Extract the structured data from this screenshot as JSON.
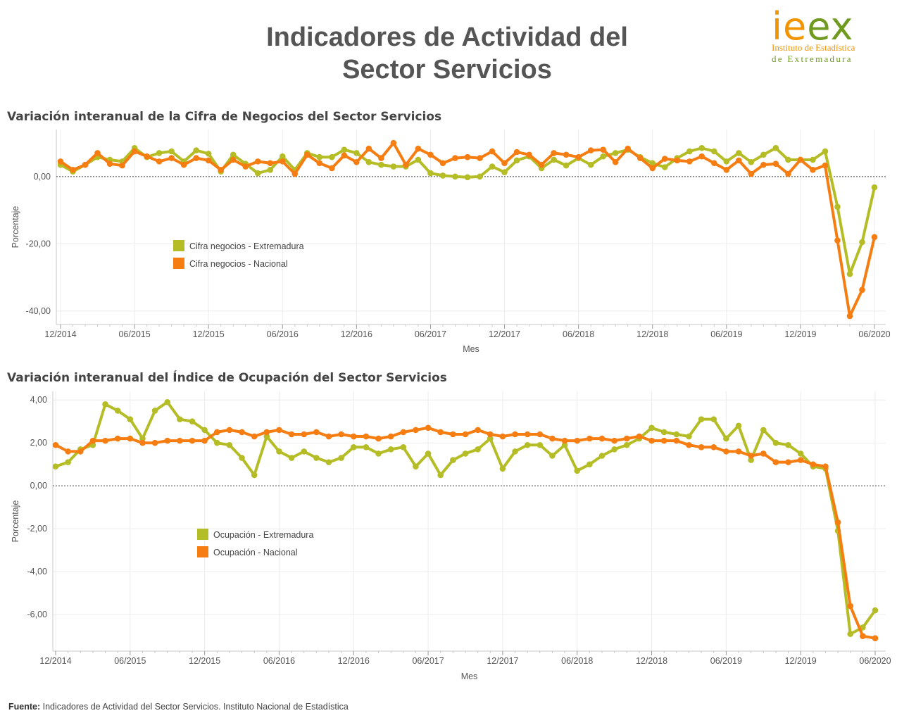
{
  "header": {
    "title_line1": "Indicadores de Actividad del",
    "title_line2": "Sector Servicios"
  },
  "logo": {
    "word_part1": "ie",
    "word_part2": "ex",
    "line1": "Instituto de Estadística",
    "line2": "de Extremadura"
  },
  "footer": {
    "source_label": "Fuente:",
    "source_text": " Indicadores de Actividad del Sector Servicios. Instituto Nacional de Estadística"
  },
  "colors": {
    "extremadura": "#b5bd26",
    "nacional": "#f57d12"
  },
  "chart_data": [
    {
      "type": "line",
      "title": "Variación interanual de la Cifra de Negocios del Sector Servicios",
      "xlabel": "Mes",
      "ylabel": "Porcentaje",
      "ylim": [
        -44,
        14
      ],
      "y_ticks": [
        0,
        -20,
        -40
      ],
      "y_tick_labels": [
        "0,00",
        "-20,00",
        "-40,00"
      ],
      "x_tick_labels": [
        "12/2014",
        "06/2015",
        "12/2015",
        "06/2016",
        "12/2016",
        "06/2017",
        "12/2017",
        "06/2018",
        "12/2018",
        "06/2019",
        "12/2019",
        "06/2020"
      ],
      "x_tick_index": [
        0,
        6,
        12,
        18,
        24,
        30,
        36,
        42,
        48,
        54,
        60,
        66
      ],
      "legend_position": "center-left",
      "series": [
        {
          "name": "Cifra negocios - Extremadura",
          "values": [
            3.5,
            1.5,
            3.5,
            5.8,
            5.0,
            4.5,
            8.5,
            5.8,
            7.0,
            7.5,
            4.5,
            7.8,
            6.8,
            1.5,
            6.5,
            3.8,
            1.0,
            2.0,
            6.0,
            2.0,
            7.0,
            5.8,
            5.8,
            8.0,
            7.0,
            4.3,
            3.5,
            3.0,
            3.0,
            5.0,
            1.0,
            0.3,
            0.0,
            -0.2,
            0.0,
            3.0,
            1.3,
            4.8,
            6.0,
            2.5,
            5.0,
            3.3,
            5.5,
            3.5,
            6.0,
            7.0,
            8.0,
            5.8,
            4.0,
            2.8,
            5.5,
            7.5,
            8.5,
            7.5,
            4.5,
            7.0,
            4.3,
            6.5,
            8.5,
            5.0,
            5.0,
            5.0,
            7.5,
            -9.0,
            -29.0,
            -19.5,
            -3.2
          ]
        },
        {
          "name": "Cifra negocios - Nacional",
          "values": [
            4.5,
            2.0,
            3.5,
            7.0,
            3.8,
            3.3,
            7.5,
            6.0,
            4.5,
            5.5,
            3.5,
            5.5,
            4.8,
            2.0,
            5.0,
            3.0,
            4.5,
            4.0,
            4.5,
            0.8,
            6.5,
            4.0,
            2.5,
            6.3,
            4.3,
            8.3,
            5.5,
            10.0,
            3.5,
            8.3,
            6.5,
            4.0,
            5.5,
            5.8,
            5.5,
            7.5,
            4.0,
            7.3,
            6.5,
            3.5,
            7.0,
            6.5,
            5.8,
            7.8,
            8.0,
            4.3,
            8.3,
            5.5,
            2.5,
            5.3,
            4.8,
            4.5,
            6.0,
            4.0,
            2.0,
            4.8,
            0.8,
            3.5,
            3.8,
            0.8,
            5.0,
            2.0,
            3.3,
            -19.0,
            -41.5,
            -33.7,
            -18.0
          ]
        }
      ]
    },
    {
      "type": "line",
      "title": "Variación interanual del Índice de Ocupación del Sector Servicios",
      "xlabel": "Mes",
      "ylabel": "Porcentaje",
      "ylim": [
        -7.7,
        4.4
      ],
      "y_ticks": [
        4,
        2,
        0,
        -2,
        -4,
        -6
      ],
      "y_tick_labels": [
        "4,00",
        "2,00",
        "0,00",
        "-2,00",
        "-4,00",
        "-6,00"
      ],
      "x_tick_labels": [
        "12/2014",
        "06/2015",
        "12/2015",
        "06/2016",
        "12/2016",
        "06/2017",
        "12/2017",
        "06/2018",
        "12/2018",
        "06/2019",
        "12/2019",
        "06/2020"
      ],
      "x_tick_index": [
        0,
        6,
        12,
        18,
        24,
        30,
        36,
        42,
        48,
        54,
        60,
        66
      ],
      "legend_position": "center-left",
      "series": [
        {
          "name": "Ocupación - Extremadura",
          "values": [
            0.9,
            1.1,
            1.7,
            1.9,
            3.8,
            3.5,
            3.1,
            2.2,
            3.5,
            3.9,
            3.1,
            3.0,
            2.6,
            2.0,
            1.9,
            1.3,
            0.5,
            2.3,
            1.6,
            1.3,
            1.6,
            1.3,
            1.1,
            1.3,
            1.8,
            1.8,
            1.5,
            1.7,
            1.8,
            0.9,
            1.5,
            0.5,
            1.2,
            1.5,
            1.7,
            2.2,
            0.8,
            1.6,
            1.9,
            1.9,
            1.4,
            1.9,
            0.7,
            1.0,
            1.4,
            1.7,
            1.9,
            2.2,
            2.7,
            2.5,
            2.4,
            2.3,
            3.1,
            3.1,
            2.2,
            2.8,
            1.2,
            2.6,
            2.0,
            1.9,
            1.5,
            0.9,
            0.8,
            -2.1,
            -6.9,
            -6.6,
            -5.8
          ]
        },
        {
          "name": "Ocupación - Nacional",
          "values": [
            1.9,
            1.6,
            1.6,
            2.1,
            2.1,
            2.2,
            2.2,
            2.0,
            2.0,
            2.1,
            2.1,
            2.1,
            2.1,
            2.5,
            2.6,
            2.5,
            2.3,
            2.5,
            2.6,
            2.4,
            2.4,
            2.5,
            2.3,
            2.4,
            2.3,
            2.3,
            2.2,
            2.3,
            2.5,
            2.6,
            2.7,
            2.5,
            2.4,
            2.4,
            2.6,
            2.4,
            2.3,
            2.4,
            2.4,
            2.4,
            2.2,
            2.1,
            2.1,
            2.2,
            2.2,
            2.1,
            2.2,
            2.3,
            2.1,
            2.1,
            2.1,
            1.9,
            1.8,
            1.8,
            1.6,
            1.6,
            1.4,
            1.5,
            1.1,
            1.1,
            1.2,
            1.0,
            0.9,
            -1.7,
            -5.6,
            -7.0,
            -7.1
          ]
        }
      ]
    }
  ]
}
